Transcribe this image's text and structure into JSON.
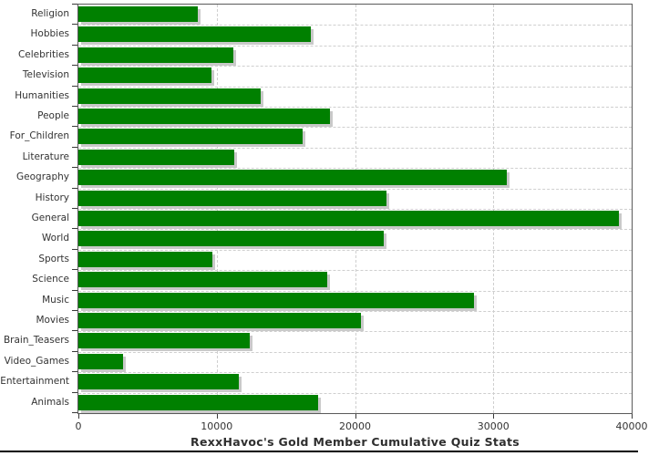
{
  "chart_data": {
    "type": "bar",
    "orientation": "horizontal",
    "title": "RexxHavoc's Gold Member Cumulative Quiz Stats",
    "xlabel": "",
    "ylabel": "",
    "categories": [
      "Religion",
      "Hobbies",
      "Celebrities",
      "Television",
      "Humanities",
      "People",
      "For_Children",
      "Literature",
      "Geography",
      "History",
      "General",
      "World",
      "Sports",
      "Science",
      "Music",
      "Movies",
      "Brain_Teasers",
      "Video_Games",
      "Entertainment",
      "Animals"
    ],
    "values": [
      8600,
      16800,
      11200,
      9600,
      13200,
      18200,
      16200,
      11300,
      31000,
      22300,
      39100,
      22100,
      9700,
      18000,
      28600,
      20400,
      12400,
      3200,
      11600,
      17300
    ],
    "xlim": [
      0,
      40000
    ],
    "x_ticks": [
      0,
      10000,
      20000,
      30000,
      40000
    ],
    "x_tick_labels": [
      "0",
      "10000",
      "20000",
      "30000",
      "40000"
    ],
    "grid": true,
    "legend_position": "none",
    "bar_color": "#008000",
    "shadow_color": "#c9c9c9",
    "grid_color": "#cfcfcf",
    "axis_color": "#3a3a3a",
    "text_color": "#333333"
  }
}
